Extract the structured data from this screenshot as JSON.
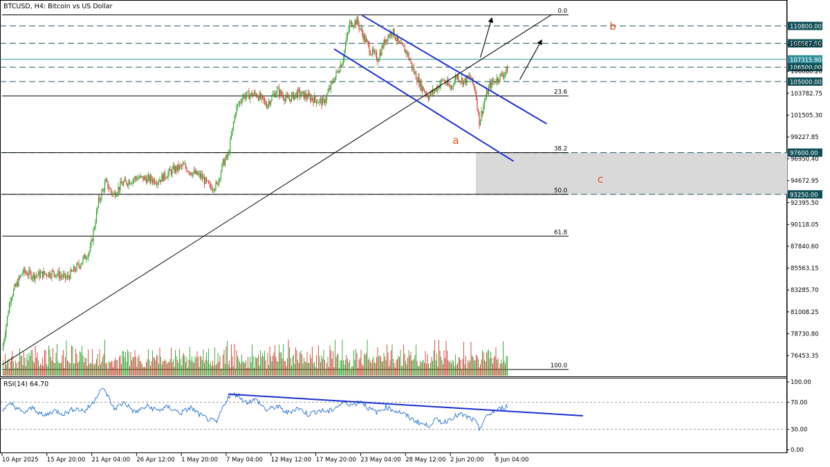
{
  "chart_title": "BTCUSD, H4:  Bitcoin vs US Dollar",
  "colors": {
    "bull": "#27a327",
    "bear": "#d03a2c",
    "channel": "#1a2fd4",
    "level_line": "#0d5c63",
    "wave_label": "#e0541b",
    "zone_fill": "#d9d9d9",
    "grid": "#000000"
  },
  "chart_data": {
    "type": "candlestick",
    "title": "BTCUSD, H4:  Bitcoin vs US Dollar",
    "price_axis": {
      "range": [
        74000,
        113500
      ],
      "ticks": [
        110800.0,
        108987.9,
        108837.85,
        107315.9,
        106500.0,
        106080.2,
        105000.0,
        103782.75,
        101505.3,
        99227.85,
        97600.0,
        96950.4,
        94672.95,
        93250.0,
        92395.5,
        90118.05,
        87840.6,
        85563.15,
        83285.7,
        81008.25,
        78730.8,
        76453.35
      ],
      "tick_labels": [
        "110800.00",
        "108987.90",
        "108837.85",
        "107315.90",
        "106500.00",
        "106080.20",
        "105000.00",
        "103782.75",
        "101505.30",
        "99227.85",
        "97600.00",
        "96950.40",
        "94672.95",
        "93250.00",
        "92395.50",
        "90118.05",
        "87840.60",
        "85563.15",
        "83285.70",
        "81008.25",
        "78730.80",
        "76453.35"
      ],
      "highlighted_levels": [
        {
          "value": 110800.0,
          "label": "110800.00",
          "style": "dashed"
        },
        {
          "value": 108987.9,
          "label": "108987.90",
          "style": "dashed"
        },
        {
          "value": 107315.9,
          "label": "107315.90",
          "style": "solid-highlight"
        },
        {
          "value": 106500.0,
          "label": "106500.00",
          "style": "dashed"
        },
        {
          "value": 105000.0,
          "label": "105000.00",
          "style": "dashed"
        },
        {
          "value": 97600.0,
          "label": "97600.00",
          "style": "dashed"
        },
        {
          "value": 93250.0,
          "label": "93250.00",
          "style": "dashed"
        }
      ]
    },
    "time_axis": {
      "labels": [
        "10 Apr 2025",
        "15 Apr 20:00",
        "21 Apr 04:00",
        "26 Apr 12:00",
        "1 May 20:00",
        "7 May 04:00",
        "12 May 12:00",
        "17 May 20:00",
        "23 May 04:00",
        "28 May 12:00",
        "2 Jun 20:00",
        "8 Jun 04:00"
      ]
    },
    "fibonacci": [
      {
        "level": "0.0",
        "price": 111950
      },
      {
        "level": "23.6",
        "price": 103500
      },
      {
        "level": "38.2",
        "price": 97600
      },
      {
        "level": "50.0",
        "price": 93250
      },
      {
        "level": "61.8",
        "price": 88900
      },
      {
        "level": "100.0",
        "price": 75000
      }
    ],
    "wave_labels": [
      "a",
      "b",
      "c"
    ],
    "support_zone": {
      "from": 93250,
      "to": 97600
    },
    "price_path": [
      {
        "t": 0,
        "p": 77000
      },
      {
        "t": 8,
        "p": 82500
      },
      {
        "t": 20,
        "p": 85200
      },
      {
        "t": 30,
        "p": 84800
      },
      {
        "t": 50,
        "p": 85100
      },
      {
        "t": 62,
        "p": 84500
      },
      {
        "t": 75,
        "p": 86000
      },
      {
        "t": 85,
        "p": 87500
      },
      {
        "t": 93,
        "p": 92500
      },
      {
        "t": 100,
        "p": 94500
      },
      {
        "t": 107,
        "p": 93200
      },
      {
        "t": 115,
        "p": 94300
      },
      {
        "t": 130,
        "p": 95000
      },
      {
        "t": 150,
        "p": 94700
      },
      {
        "t": 165,
        "p": 95800
      },
      {
        "t": 175,
        "p": 96200
      },
      {
        "t": 182,
        "p": 95600
      },
      {
        "t": 192,
        "p": 95100
      },
      {
        "t": 200,
        "p": 94000
      },
      {
        "t": 207,
        "p": 94200
      },
      {
        "t": 213,
        "p": 96500
      },
      {
        "t": 218,
        "p": 97300
      },
      {
        "t": 225,
        "p": 102000
      },
      {
        "t": 232,
        "p": 103500
      },
      {
        "t": 245,
        "p": 103700
      },
      {
        "t": 255,
        "p": 102600
      },
      {
        "t": 265,
        "p": 104100
      },
      {
        "t": 275,
        "p": 103100
      },
      {
        "t": 285,
        "p": 103800
      },
      {
        "t": 300,
        "p": 103200
      },
      {
        "t": 310,
        "p": 102800
      },
      {
        "t": 318,
        "p": 104800
      },
      {
        "t": 328,
        "p": 107200
      },
      {
        "t": 335,
        "p": 111000
      },
      {
        "t": 342,
        "p": 111300
      },
      {
        "t": 348,
        "p": 109800
      },
      {
        "t": 355,
        "p": 108200
      },
      {
        "t": 362,
        "p": 107400
      },
      {
        "t": 370,
        "p": 109500
      },
      {
        "t": 376,
        "p": 110300
      },
      {
        "t": 383,
        "p": 108800
      },
      {
        "t": 390,
        "p": 108100
      },
      {
        "t": 397,
        "p": 106000
      },
      {
        "t": 404,
        "p": 104500
      },
      {
        "t": 411,
        "p": 103500
      },
      {
        "t": 418,
        "p": 104200
      },
      {
        "t": 425,
        "p": 105200
      },
      {
        "t": 432,
        "p": 104300
      },
      {
        "t": 438,
        "p": 105600
      },
      {
        "t": 445,
        "p": 105000
      },
      {
        "t": 451,
        "p": 105500
      },
      {
        "t": 456,
        "p": 104100
      },
      {
        "t": 460,
        "p": 100800
      },
      {
        "t": 465,
        "p": 103000
      },
      {
        "t": 470,
        "p": 104600
      },
      {
        "t": 477,
        "p": 105300
      },
      {
        "t": 483,
        "p": 105800
      },
      {
        "t": 487,
        "p": 106200
      }
    ],
    "volume_profile": [
      3,
      4,
      2,
      5,
      3,
      6,
      4,
      3,
      5,
      4,
      6,
      3,
      2,
      4,
      5,
      3,
      6,
      7,
      4,
      5,
      3,
      8,
      5,
      4,
      6,
      3,
      5,
      4,
      7,
      5,
      3,
      4,
      6,
      4,
      5,
      3,
      2,
      4,
      3,
      5,
      4,
      6,
      5,
      3,
      4,
      7,
      5,
      4,
      3,
      6,
      4,
      5,
      8,
      6,
      4,
      3,
      5,
      4,
      6,
      5,
      3,
      4,
      7,
      6,
      5,
      4,
      3,
      6,
      8,
      5,
      4,
      6,
      5,
      3,
      4,
      5,
      7,
      6,
      4,
      3,
      5,
      6,
      4,
      7,
      5,
      3,
      4,
      6,
      5,
      4,
      3,
      5,
      6,
      4,
      5,
      3,
      4,
      6,
      5,
      7
    ],
    "rsi": {
      "label": "RSI(14) 64.70",
      "period": 14,
      "value": 64.7,
      "axis_ticks": [
        100.0,
        70.0,
        30.0,
        0.0
      ],
      "axis_labels": [
        "100.00",
        "70.00",
        "30.00",
        "0.00"
      ],
      "levels": [
        70,
        30
      ],
      "path": [
        {
          "t": 0,
          "v": 60
        },
        {
          "t": 10,
          "v": 67
        },
        {
          "t": 20,
          "v": 54
        },
        {
          "t": 30,
          "v": 62
        },
        {
          "t": 40,
          "v": 49
        },
        {
          "t": 50,
          "v": 58
        },
        {
          "t": 60,
          "v": 53
        },
        {
          "t": 70,
          "v": 61
        },
        {
          "t": 80,
          "v": 57
        },
        {
          "t": 88,
          "v": 70
        },
        {
          "t": 95,
          "v": 90
        },
        {
          "t": 100,
          "v": 85
        },
        {
          "t": 108,
          "v": 60
        },
        {
          "t": 118,
          "v": 70
        },
        {
          "t": 128,
          "v": 55
        },
        {
          "t": 140,
          "v": 64
        },
        {
          "t": 150,
          "v": 58
        },
        {
          "t": 160,
          "v": 63
        },
        {
          "t": 172,
          "v": 54
        },
        {
          "t": 182,
          "v": 62
        },
        {
          "t": 190,
          "v": 52
        },
        {
          "t": 200,
          "v": 44
        },
        {
          "t": 207,
          "v": 40
        },
        {
          "t": 212,
          "v": 60
        },
        {
          "t": 218,
          "v": 78
        },
        {
          "t": 226,
          "v": 82
        },
        {
          "t": 235,
          "v": 70
        },
        {
          "t": 245,
          "v": 74
        },
        {
          "t": 255,
          "v": 58
        },
        {
          "t": 265,
          "v": 64
        },
        {
          "t": 275,
          "v": 54
        },
        {
          "t": 285,
          "v": 62
        },
        {
          "t": 295,
          "v": 52
        },
        {
          "t": 305,
          "v": 58
        },
        {
          "t": 315,
          "v": 56
        },
        {
          "t": 322,
          "v": 63
        },
        {
          "t": 330,
          "v": 70
        },
        {
          "t": 338,
          "v": 66
        },
        {
          "t": 346,
          "v": 72
        },
        {
          "t": 354,
          "v": 60
        },
        {
          "t": 362,
          "v": 55
        },
        {
          "t": 370,
          "v": 63
        },
        {
          "t": 378,
          "v": 58
        },
        {
          "t": 386,
          "v": 54
        },
        {
          "t": 394,
          "v": 46
        },
        {
          "t": 402,
          "v": 40
        },
        {
          "t": 410,
          "v": 35
        },
        {
          "t": 418,
          "v": 44
        },
        {
          "t": 426,
          "v": 40
        },
        {
          "t": 434,
          "v": 48
        },
        {
          "t": 442,
          "v": 52
        },
        {
          "t": 450,
          "v": 47
        },
        {
          "t": 456,
          "v": 42
        },
        {
          "t": 460,
          "v": 30
        },
        {
          "t": 465,
          "v": 45
        },
        {
          "t": 472,
          "v": 55
        },
        {
          "t": 480,
          "v": 60
        },
        {
          "t": 487,
          "v": 64.7
        }
      ],
      "divergence_line": {
        "from": {
          "t": 218,
          "v": 82
        },
        "to": {
          "t": 560,
          "v": 50
        }
      }
    },
    "annotations": {
      "uptrend_line": {
        "from": {
          "t": 0,
          "p": 75500
        },
        "to": {
          "t": 530,
          "p": 112000
        }
      },
      "channel_upper": {
        "from": {
          "t": 347,
          "p": 111900
        },
        "to": {
          "t": 525,
          "p": 100600
        }
      },
      "channel_lower": {
        "from": {
          "t": 320,
          "p": 108400
        },
        "to": {
          "t": 493,
          "p": 96700
        }
      },
      "arrows": [
        {
          "from": {
            "t": 461,
            "p": 107500
          },
          "to": {
            "t": 472,
            "p": 111600
          }
        },
        {
          "from": {
            "t": 499,
            "p": 105200
          },
          "to": {
            "t": 520,
            "p": 109300
          }
        }
      ]
    }
  }
}
